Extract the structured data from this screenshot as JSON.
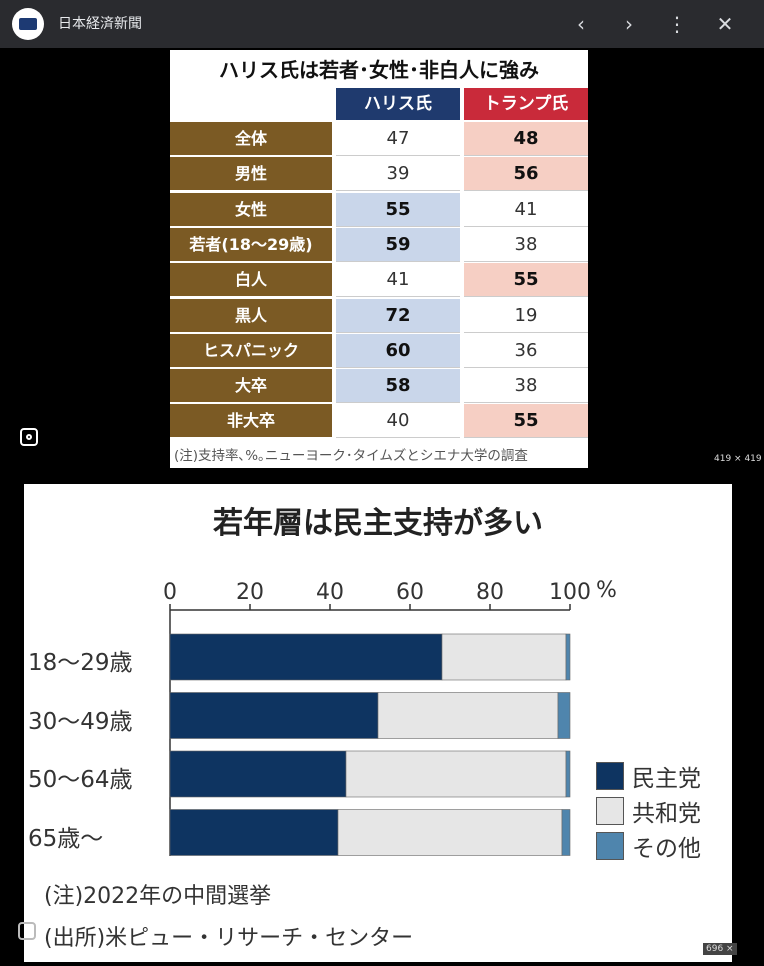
{
  "topbar": {
    "site_title": "日本経済新聞",
    "icons": [
      "site-logo-icon",
      "chevron-left-icon",
      "chevron-right-icon",
      "more-vert-icon",
      "close-icon"
    ]
  },
  "image1": {
    "dimensions_label": "419 × 419",
    "title": "ハリス氏は若者･女性･非白人に強み",
    "columns": [
      "ハリス氏",
      "トランプ氏"
    ],
    "rows": [
      {
        "label": "全体",
        "harris": "47",
        "trump": "48",
        "lead": "trump"
      },
      {
        "label": "男性",
        "harris": "39",
        "trump": "56",
        "lead": "trump"
      },
      {
        "label": "女性",
        "harris": "55",
        "trump": "41",
        "lead": "harris"
      },
      {
        "label": "若者(18〜29歳)",
        "harris": "59",
        "trump": "38",
        "lead": "harris"
      },
      {
        "label": "白人",
        "harris": "41",
        "trump": "55",
        "lead": "trump"
      },
      {
        "label": "黒人",
        "harris": "72",
        "trump": "19",
        "lead": "harris"
      },
      {
        "label": "ヒスパニック",
        "harris": "60",
        "trump": "36",
        "lead": "harris"
      },
      {
        "label": "大卒",
        "harris": "58",
        "trump": "38",
        "lead": "harris"
      },
      {
        "label": "非大卒",
        "harris": "40",
        "trump": "55",
        "lead": "trump"
      }
    ],
    "note": "(注)支持率､%｡ニューヨーク･タイムズとシエナ大学の調査",
    "colors": {
      "label_bg": "#7b5a24",
      "harris_header": "#1f3a6e",
      "trump_header": "#c92a3a",
      "harris_highlight": "#c9d6ea",
      "trump_highlight": "#f6cfc4"
    }
  },
  "image2": {
    "dimensions_label": "696 ×",
    "notes": [
      "(注)2022年の中間選挙",
      "(出所)米ピュー・リサーチ・センター"
    ],
    "chart_data": {
      "type": "bar",
      "orientation": "horizontal-stacked",
      "title": "若年層は民主支持が多い",
      "xlim": [
        0,
        100
      ],
      "x_ticks": [
        "0",
        "20",
        "40",
        "60",
        "80",
        "100"
      ],
      "unit": "%",
      "categories": [
        "18〜29歳",
        "30〜49歳",
        "50〜64歳",
        "65歳〜"
      ],
      "series": [
        {
          "name": "民主党",
          "color": "#0e3461",
          "values": [
            68,
            52,
            44,
            42
          ]
        },
        {
          "name": "共和党",
          "color": "#e6e6e6",
          "values": [
            31,
            45,
            55,
            56
          ]
        },
        {
          "name": "その他",
          "color": "#4f85ad",
          "values": [
            1,
            3,
            1,
            2
          ]
        }
      ],
      "legend": "right",
      "grid": false
    }
  }
}
